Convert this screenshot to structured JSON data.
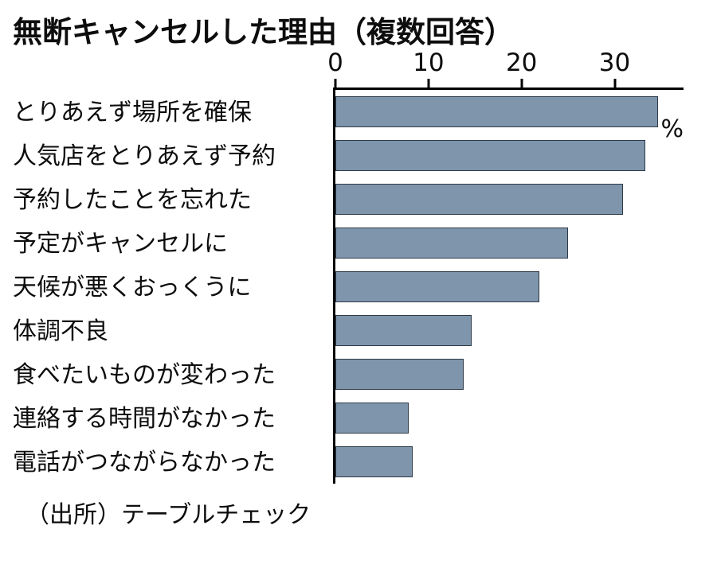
{
  "chart_data": {
    "type": "bar",
    "orientation": "horizontal",
    "title": "無断キャンセルした理由（複数回答）",
    "unit_label": "%",
    "source": "（出所）テーブルチェック",
    "categories": [
      "とりあえず場所を確保",
      "人気店をとりあえず予約",
      "予約したことを忘れた",
      "予定がキャンセルに",
      "天候が悪くおっくうに",
      "体調不良",
      "食べたいものが変わった",
      "連絡する時間がなかった",
      "電話がつながらなかった"
    ],
    "values": [
      34.7,
      33.3,
      30.9,
      25.0,
      21.9,
      14.6,
      13.8,
      7.9,
      8.3
    ],
    "xlim": [
      0,
      37.4
    ],
    "xticks": [
      0,
      10,
      20,
      30
    ],
    "grid": false,
    "legend": "none",
    "bar_color": "#7e95ac",
    "bar_border_color": "#2e3a46"
  }
}
